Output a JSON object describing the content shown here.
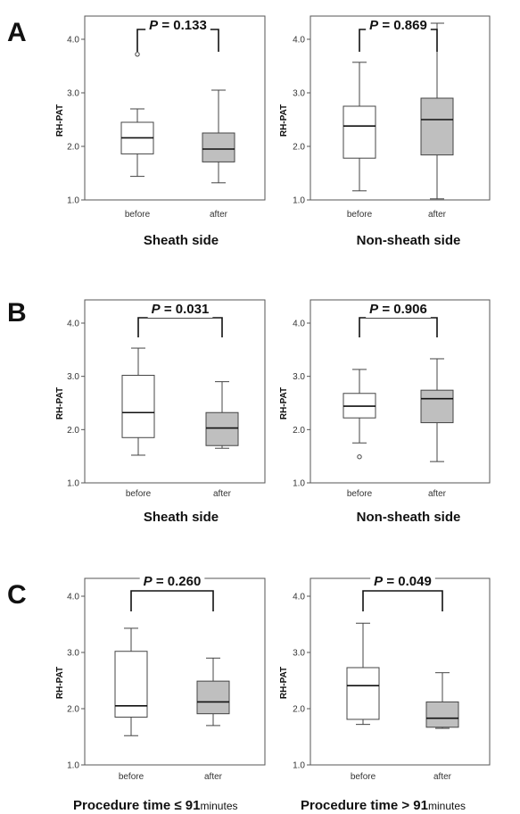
{
  "chart_data": [
    {
      "type": "box",
      "panel": "A",
      "title": "Sheath side",
      "title_suffix": "",
      "pvalue": "= 0.133",
      "ylabel": "RH-PAT",
      "ylim": [
        1.0,
        4.0
      ],
      "yticks": [
        "1.0",
        "2.0",
        "3.0",
        "4.0"
      ],
      "categories": [
        "before",
        "after"
      ],
      "boxes": [
        {
          "min": 1.44,
          "q1": 1.86,
          "median": 2.16,
          "q3": 2.45,
          "max": 2.7,
          "outliers": [
            3.72
          ],
          "fill": "#ffffff"
        },
        {
          "min": 1.32,
          "q1": 1.71,
          "median": 1.95,
          "q3": 2.25,
          "max": 3.05,
          "outliers": [],
          "fill": "#bfbfbf"
        }
      ]
    },
    {
      "type": "box",
      "panel": "",
      "title": "Non-sheath side",
      "title_suffix": "",
      "pvalue": "= 0.869",
      "ylabel": "RH-PAT",
      "ylim": [
        1.0,
        4.0
      ],
      "yticks": [
        "1.0",
        "2.0",
        "3.0",
        "4.0"
      ],
      "categories": [
        "before",
        "after"
      ],
      "boxes": [
        {
          "min": 1.17,
          "q1": 1.78,
          "median": 2.38,
          "q3": 2.75,
          "max": 3.57,
          "outliers": [],
          "fill": "#ffffff"
        },
        {
          "min": 1.02,
          "q1": 1.84,
          "median": 2.5,
          "q3": 2.9,
          "max": 4.3,
          "outliers": [],
          "fill": "#bfbfbf"
        }
      ]
    },
    {
      "type": "box",
      "panel": "B",
      "title": "Sheath side",
      "title_suffix": "",
      "pvalue": "= 0.031",
      "ylabel": "RH-PAT",
      "ylim": [
        1.0,
        4.0
      ],
      "yticks": [
        "1.0",
        "2.0",
        "3.0",
        "4.0"
      ],
      "categories": [
        "before",
        "after"
      ],
      "boxes": [
        {
          "min": 1.52,
          "q1": 1.85,
          "median": 2.32,
          "q3": 3.02,
          "max": 3.53,
          "outliers": [],
          "fill": "#ffffff"
        },
        {
          "min": 1.65,
          "q1": 1.7,
          "median": 2.03,
          "q3": 2.32,
          "max": 2.9,
          "outliers": [],
          "fill": "#bfbfbf"
        }
      ]
    },
    {
      "type": "box",
      "panel": "",
      "title": "Non-sheath side",
      "title_suffix": "",
      "pvalue": "= 0.906",
      "ylabel": "RH-PAT",
      "ylim": [
        1.0,
        4.0
      ],
      "yticks": [
        "1.0",
        "2.0",
        "3.0",
        "4.0"
      ],
      "categories": [
        "before",
        "after"
      ],
      "boxes": [
        {
          "min": 1.75,
          "q1": 2.22,
          "median": 2.44,
          "q3": 2.68,
          "max": 3.13,
          "outliers": [
            1.49
          ],
          "fill": "#ffffff"
        },
        {
          "min": 1.4,
          "q1": 2.13,
          "median": 2.58,
          "q3": 2.74,
          "max": 3.33,
          "outliers": [],
          "fill": "#bfbfbf"
        }
      ]
    },
    {
      "type": "box",
      "panel": "C",
      "title": "Procedure time ≤ 91",
      "title_suffix": "minutes",
      "pvalue": "= 0.260",
      "ylabel": "RH-PAT",
      "ylim": [
        1.0,
        4.0
      ],
      "yticks": [
        "1.0",
        "2.0",
        "3.0",
        "4.0"
      ],
      "categories": [
        "before",
        "after"
      ],
      "boxes": [
        {
          "min": 1.52,
          "q1": 1.85,
          "median": 2.05,
          "q3": 3.02,
          "max": 3.43,
          "outliers": [],
          "fill": "#ffffff"
        },
        {
          "min": 1.7,
          "q1": 1.91,
          "median": 2.12,
          "q3": 2.49,
          "max": 2.9,
          "outliers": [],
          "fill": "#bfbfbf"
        }
      ]
    },
    {
      "type": "box",
      "panel": "",
      "title": "Procedure time > 91",
      "title_suffix": "minutes",
      "pvalue": "= 0.049",
      "ylabel": "RH-PAT",
      "ylim": [
        1.0,
        4.0
      ],
      "yticks": [
        "1.0",
        "2.0",
        "3.0",
        "4.0"
      ],
      "categories": [
        "before",
        "after"
      ],
      "boxes": [
        {
          "min": 1.72,
          "q1": 1.81,
          "median": 2.41,
          "q3": 2.73,
          "max": 3.52,
          "outliers": [],
          "fill": "#ffffff"
        },
        {
          "min": 1.65,
          "q1": 1.67,
          "median": 1.83,
          "q3": 2.12,
          "max": 2.64,
          "outliers": [],
          "fill": "#bfbfbf"
        }
      ]
    }
  ],
  "pvalue_label": "P"
}
